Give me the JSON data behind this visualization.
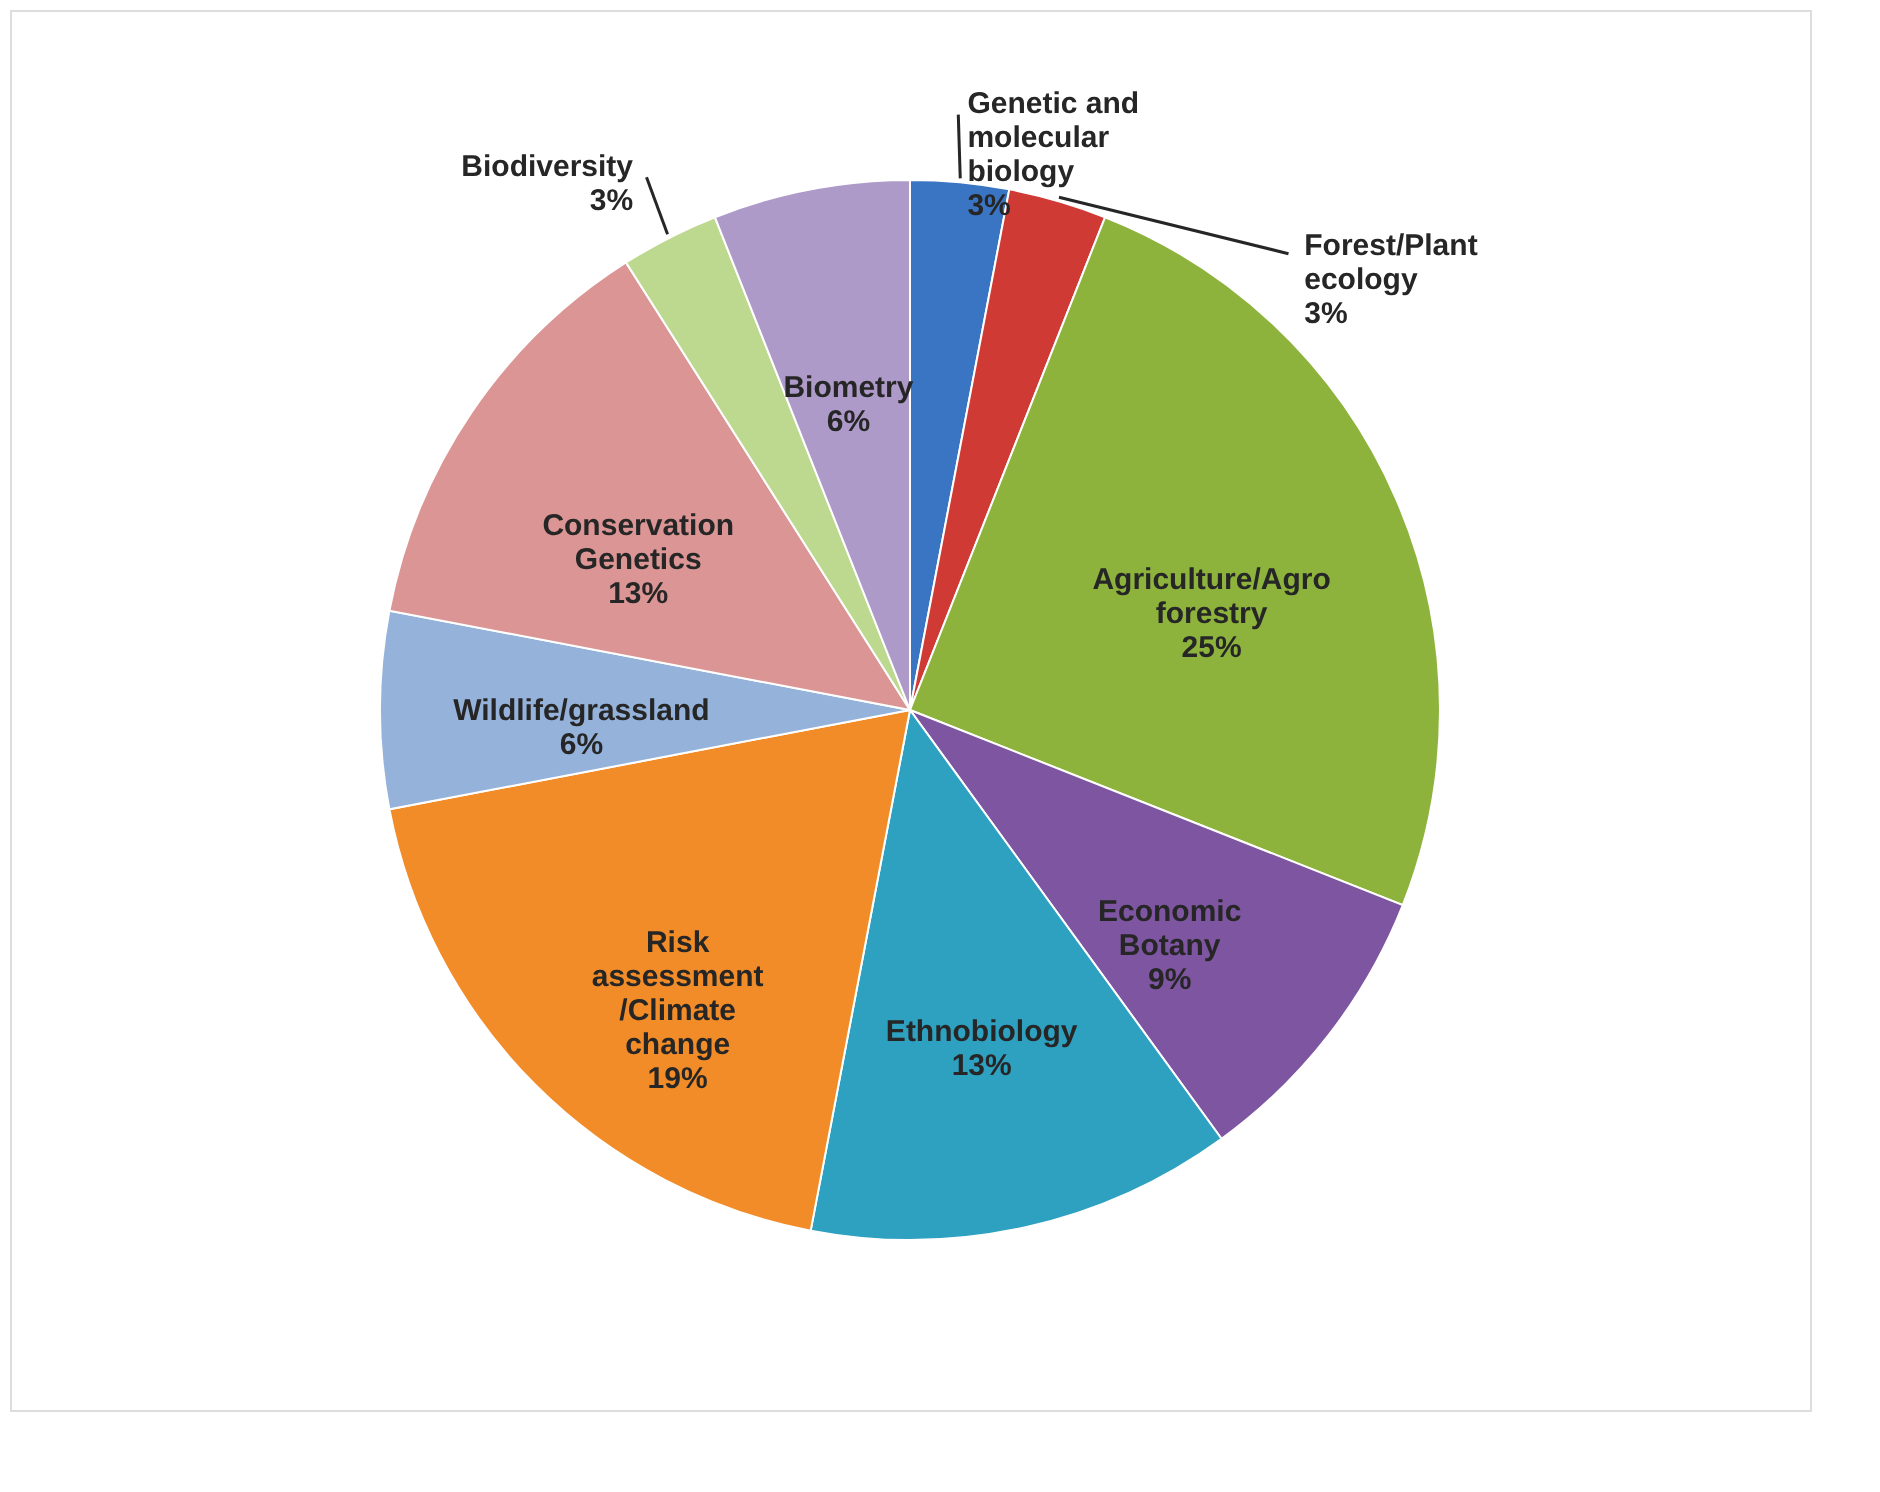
{
  "chart_data": {
    "type": "pie",
    "categories": [
      "Genetic and molecular biology",
      "Forest/Plant ecology",
      "Agriculture/Agro forestry",
      "Economic Botany",
      "Ethnobiology",
      "Risk assessment /Climate change",
      "Wildlife/grassland",
      "Conservation Genetics",
      "Biodiversity",
      "Biometry"
    ],
    "values": [
      3,
      3,
      25,
      9,
      13,
      19,
      6,
      13,
      3,
      6
    ],
    "value_labels": [
      "3%",
      "3%",
      "25%",
      "9%",
      "13%",
      "19%",
      "6%",
      "13%",
      "3%",
      "6%"
    ],
    "colors": [
      "#3a75c4",
      "#d03a35",
      "#8db33c",
      "#7e55a0",
      "#2ea0c0",
      "#f28c28",
      "#94b2da",
      "#da9594",
      "#bcd98f",
      "#ad9ac8"
    ],
    "legend": false
  }
}
